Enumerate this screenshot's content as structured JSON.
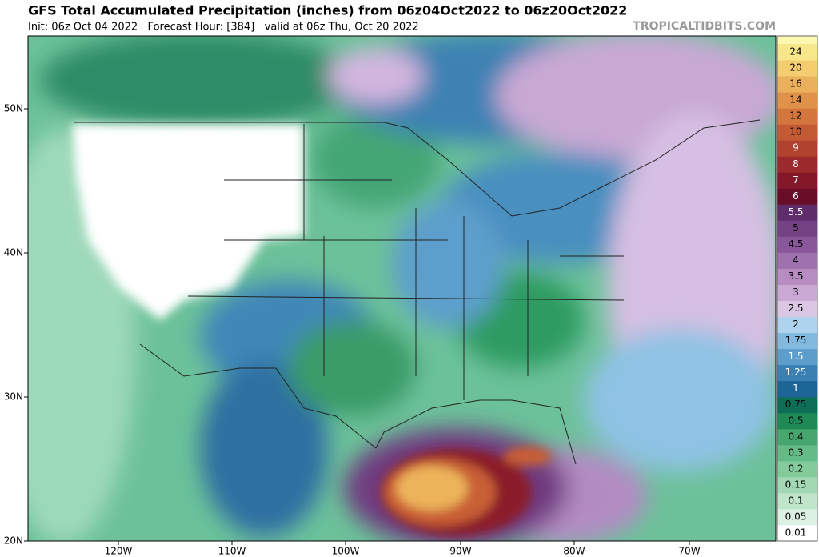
{
  "header": {
    "title": "GFS Total Accumulated Precipitation (inches) from 06z04Oct2022 to 06z20Oct2022",
    "subtitle": "Init: 06z Oct 04 2022   Forecast Hour: [384]   valid at 06z Thu, Oct 20 2022",
    "brand": "TROPICALTIDBITS.COM"
  },
  "map": {
    "lon_labels": [
      "120W",
      "110W",
      "100W",
      "90W",
      "80W",
      "70W"
    ],
    "lat_labels": [
      "50N",
      "40N",
      "30N",
      "20N"
    ]
  },
  "colorbar": {
    "top_color": "#fdf8b0",
    "levels": [
      {
        "value": 0.01,
        "color": "#ffffff"
      },
      {
        "value": 0.05,
        "color": "#dcf1e3"
      },
      {
        "value": 0.1,
        "color": "#bfe6cb"
      },
      {
        "value": 0.15,
        "color": "#a2d9b4"
      },
      {
        "value": 0.2,
        "color": "#84cb9c"
      },
      {
        "value": 0.3,
        "color": "#65bb85"
      },
      {
        "value": 0.4,
        "color": "#46a66e"
      },
      {
        "value": 0.5,
        "color": "#1f8a55"
      },
      {
        "value": 0.75,
        "color": "#0d6e57"
      },
      {
        "value": 1,
        "color": "#1d6596"
      },
      {
        "value": 1.25,
        "color": "#3a80b5"
      },
      {
        "value": 1.5,
        "color": "#5c9dcb"
      },
      {
        "value": 1.75,
        "color": "#82badf"
      },
      {
        "value": 2,
        "color": "#add3ee"
      },
      {
        "value": 2.5,
        "color": "#dbc6e3"
      },
      {
        "value": 3,
        "color": "#c9a8d4"
      },
      {
        "value": 3.5,
        "color": "#b68cc3"
      },
      {
        "value": 4,
        "color": "#a071af"
      },
      {
        "value": 4.5,
        "color": "#8a579a"
      },
      {
        "value": 5,
        "color": "#754285"
      },
      {
        "value": 5.5,
        "color": "#5f2d6c"
      },
      {
        "value": 6,
        "color": "#6a0d2a"
      },
      {
        "value": 7,
        "color": "#85172b"
      },
      {
        "value": 8,
        "color": "#9c2a2c"
      },
      {
        "value": 9,
        "color": "#b1422f"
      },
      {
        "value": 10,
        "color": "#c35a34"
      },
      {
        "value": 12,
        "color": "#d3753d"
      },
      {
        "value": 14,
        "color": "#e1924a"
      },
      {
        "value": 16,
        "color": "#ebb05b"
      },
      {
        "value": 20,
        "color": "#f3cd70"
      },
      {
        "value": 24,
        "color": "#f8e68a"
      }
    ]
  }
}
